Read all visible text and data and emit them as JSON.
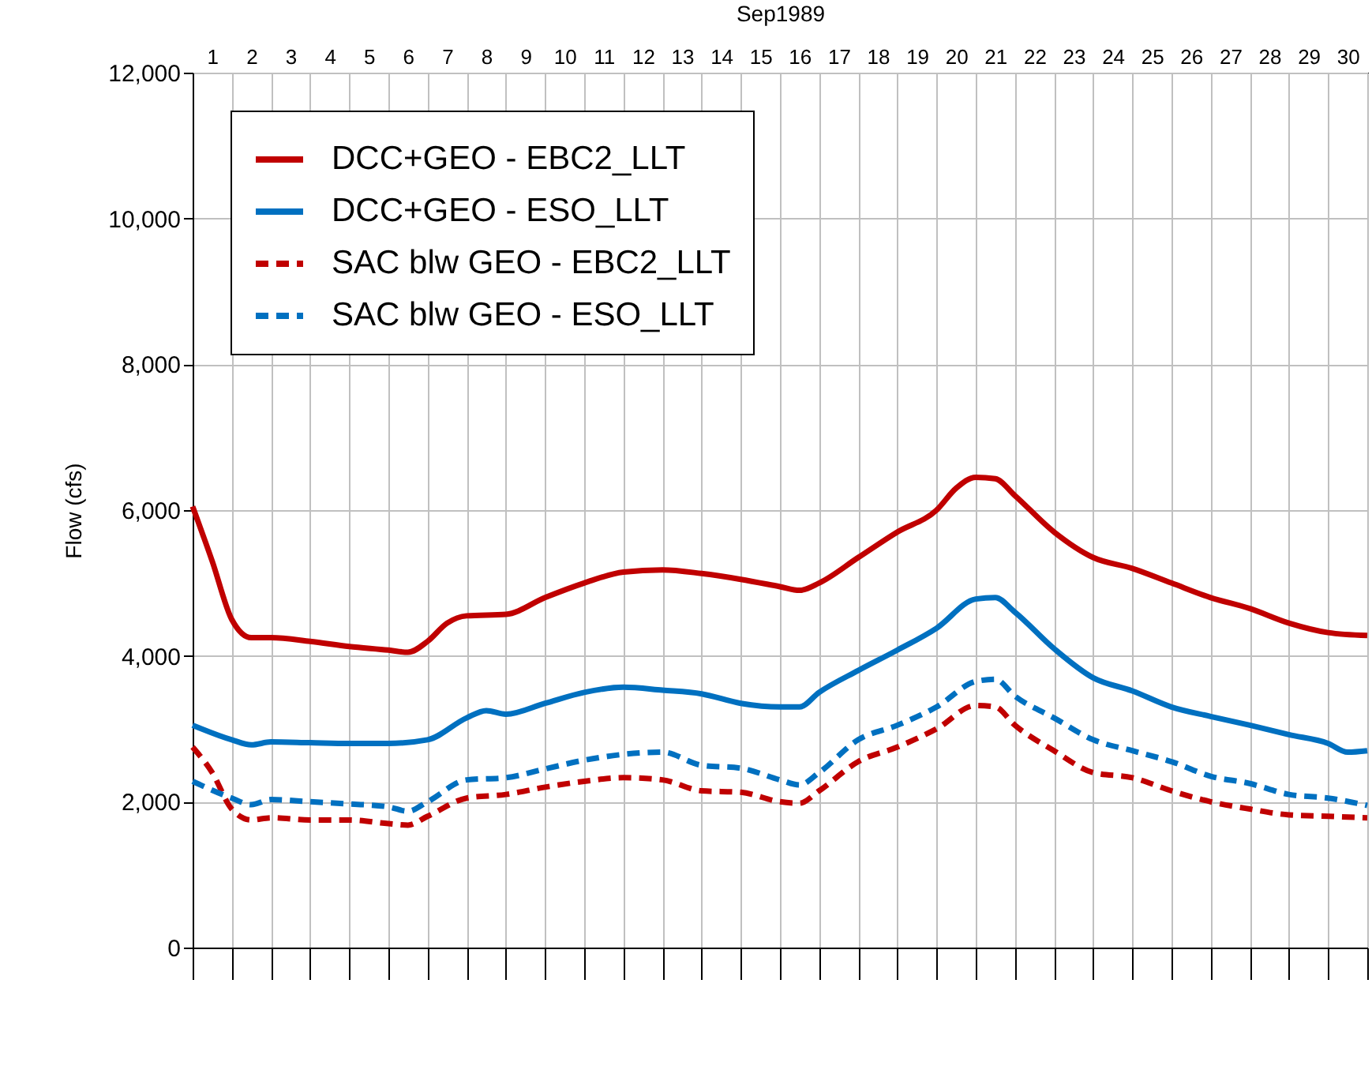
{
  "chart_data": {
    "type": "line",
    "xlabel": "Sep1989",
    "ylabel": "Flow (cfs)",
    "xlim": [
      1,
      31
    ],
    "ylim": [
      0,
      12000
    ],
    "yticks": [
      0,
      {
        "value": 2000,
        "label": "2,000"
      },
      {
        "value": 4000,
        "label": "4,000"
      },
      {
        "value": 6000,
        "label": "6,000"
      },
      {
        "value": 8000,
        "label": "8,000"
      },
      {
        "value": 10000,
        "label": "10,000"
      },
      {
        "value": 12000,
        "label": "12,000"
      }
    ],
    "xticks": [
      {
        "value": 1,
        "label": null
      },
      {
        "value": 1.5,
        "label": "1"
      },
      {
        "value": 2,
        "label": null
      },
      {
        "value": 2.5,
        "label": "2"
      },
      {
        "value": 3,
        "label": null
      },
      {
        "value": 3.5,
        "label": "3"
      },
      {
        "value": 4,
        "label": null
      },
      {
        "value": 4.5,
        "label": "4"
      },
      {
        "value": 5,
        "label": null
      },
      {
        "value": 5.5,
        "label": "5"
      },
      {
        "value": 6,
        "label": null
      },
      {
        "value": 6.5,
        "label": "6"
      },
      {
        "value": 7,
        "label": null
      },
      {
        "value": 7.5,
        "label": "7"
      },
      {
        "value": 8,
        "label": null
      },
      {
        "value": 8.5,
        "label": "8"
      },
      {
        "value": 9,
        "label": null
      },
      {
        "value": 9.5,
        "label": "9"
      },
      {
        "value": 10,
        "label": null
      },
      {
        "value": 10.5,
        "label": "10"
      },
      {
        "value": 11,
        "label": null
      },
      {
        "value": 11.5,
        "label": "11"
      },
      {
        "value": 12,
        "label": null
      },
      {
        "value": 12.5,
        "label": "12"
      },
      {
        "value": 13,
        "label": null
      },
      {
        "value": 13.5,
        "label": "13"
      },
      {
        "value": 14,
        "label": null
      },
      {
        "value": 14.5,
        "label": "14"
      },
      {
        "value": 15,
        "label": null
      },
      {
        "value": 15.5,
        "label": "15"
      },
      {
        "value": 16,
        "label": null
      },
      {
        "value": 16.5,
        "label": "16"
      },
      {
        "value": 17,
        "label": null
      },
      {
        "value": 17.5,
        "label": "17"
      },
      {
        "value": 18,
        "label": null
      },
      {
        "value": 18.5,
        "label": "18"
      },
      {
        "value": 19,
        "label": null
      },
      {
        "value": 19.5,
        "label": "19"
      },
      {
        "value": 20,
        "label": null
      },
      {
        "value": 20.5,
        "label": "20"
      },
      {
        "value": 21,
        "label": null
      },
      {
        "value": 21.5,
        "label": "21"
      },
      {
        "value": 22,
        "label": null
      },
      {
        "value": 22.5,
        "label": "22"
      },
      {
        "value": 23,
        "label": null
      },
      {
        "value": 23.5,
        "label": "23"
      },
      {
        "value": 24,
        "label": null
      },
      {
        "value": 24.5,
        "label": "24"
      },
      {
        "value": 25,
        "label": null
      },
      {
        "value": 25.5,
        "label": "25"
      },
      {
        "value": 26,
        "label": null
      },
      {
        "value": 26.5,
        "label": "26"
      },
      {
        "value": 27,
        "label": null
      },
      {
        "value": 27.5,
        "label": "27"
      },
      {
        "value": 28,
        "label": null
      },
      {
        "value": 28.5,
        "label": "28"
      },
      {
        "value": 29,
        "label": null
      },
      {
        "value": 29.5,
        "label": "29"
      },
      {
        "value": 30,
        "label": null
      },
      {
        "value": 30.5,
        "label": "30"
      },
      {
        "value": 31,
        "label": null
      }
    ],
    "grid": true,
    "legend": "top left",
    "marker": "none",
    "series": [
      {
        "name": "DCC+GEO - EBC2_LLT",
        "color": "#c00000",
        "line_style": "solid",
        "x": [
          1,
          1.5,
          2,
          2.5,
          3,
          4,
          5,
          6,
          6.5,
          7,
          7.5,
          8,
          9,
          10,
          11,
          12,
          13,
          14,
          15,
          16,
          16.5,
          17,
          18,
          19,
          20,
          20.5,
          21,
          21.5,
          22,
          23,
          24,
          25,
          26,
          27,
          28,
          29,
          30,
          31
        ],
        "values": [
          6050,
          5300,
          4500,
          4250,
          4250,
          4200,
          4130,
          4080,
          4050,
          4200,
          4450,
          4550,
          4570,
          4800,
          5000,
          5150,
          5180,
          5130,
          5050,
          4950,
          4900,
          5000,
          5350,
          5700,
          6000,
          6300,
          6450,
          6430,
          6200,
          5700,
          5350,
          5200,
          5000,
          4800,
          4650,
          4450,
          4320,
          4280
        ]
      },
      {
        "name": "DCC+GEO - ESO_LLT",
        "color": "#0070c0",
        "line_style": "solid",
        "x": [
          1,
          2,
          2.5,
          3,
          4,
          5,
          6,
          7,
          8,
          8.5,
          9,
          10,
          11,
          12,
          13,
          14,
          15,
          16,
          16.5,
          17,
          18,
          19,
          20,
          21,
          21.5,
          22,
          23,
          24,
          25,
          26,
          27,
          28,
          29,
          30,
          30.5,
          31
        ],
        "values": [
          3050,
          2850,
          2780,
          2820,
          2810,
          2800,
          2800,
          2850,
          3150,
          3250,
          3200,
          3350,
          3500,
          3570,
          3530,
          3480,
          3350,
          3300,
          3300,
          3500,
          3800,
          4080,
          4380,
          4780,
          4800,
          4600,
          4100,
          3700,
          3520,
          3300,
          3170,
          3050,
          2920,
          2800,
          2680,
          2700
        ]
      },
      {
        "name": "SAC blw GEO - EBC2_LLT",
        "color": "#c00000",
        "line_style": "dashed",
        "x": [
          1,
          1.5,
          2,
          2.5,
          3,
          4,
          5,
          6,
          6.5,
          7,
          8,
          9,
          10,
          11,
          12,
          13,
          14,
          15,
          16,
          16.5,
          17,
          18,
          19,
          20,
          21,
          21.5,
          22,
          23,
          24,
          25,
          26,
          27,
          28,
          29,
          30,
          31
        ],
        "values": [
          2750,
          2400,
          1900,
          1750,
          1780,
          1750,
          1750,
          1700,
          1680,
          1800,
          2050,
          2100,
          2200,
          2280,
          2330,
          2300,
          2150,
          2130,
          2000,
          1980,
          2150,
          2550,
          2750,
          3000,
          3320,
          3300,
          3050,
          2700,
          2400,
          2330,
          2150,
          2000,
          1900,
          1820,
          1800,
          1780
        ]
      },
      {
        "name": "SAC blw GEO - ESO_LLT",
        "color": "#0070c0",
        "line_style": "dashed",
        "x": [
          1,
          2,
          2.5,
          3,
          4,
          5,
          6,
          6.5,
          7,
          8,
          9,
          10,
          11,
          12,
          13,
          14,
          15,
          16,
          16.5,
          17,
          18,
          19,
          20,
          21,
          21.5,
          22,
          23,
          24,
          25,
          26,
          27,
          28,
          29,
          30,
          31
        ],
        "values": [
          2280,
          2050,
          1960,
          2030,
          2000,
          1970,
          1930,
          1870,
          2000,
          2300,
          2330,
          2450,
          2570,
          2650,
          2680,
          2500,
          2460,
          2300,
          2230,
          2400,
          2850,
          3050,
          3300,
          3650,
          3680,
          3450,
          3150,
          2850,
          2700,
          2550,
          2350,
          2250,
          2100,
          2050,
          1950
        ]
      }
    ]
  }
}
